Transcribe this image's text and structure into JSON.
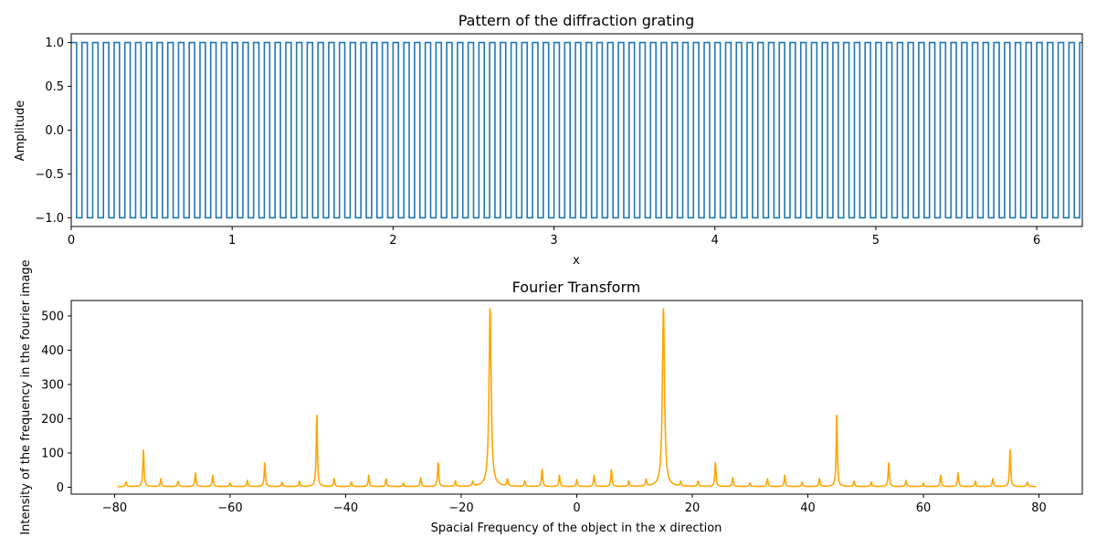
{
  "chart_data": [
    {
      "type": "line",
      "title": "Pattern of the diffraction grating",
      "xlabel": "x",
      "ylabel": "Amplitude",
      "xlim": [
        0,
        6.283
      ],
      "ylim": [
        -1.1,
        1.1
      ],
      "x_ticks": [
        "0",
        "1",
        "2",
        "3",
        "4",
        "5",
        "6"
      ],
      "y_ticks": [
        "1.0",
        "0.5",
        "0.0",
        "−0.5",
        "−1.0"
      ],
      "series": [
        {
          "description": "square wave between -1 and 1",
          "color": "#1f77b4",
          "frequency_cycles_per_unit": 15,
          "amplitude": 1.0,
          "x_range": [
            0,
            6.283
          ]
        }
      ],
      "grid": false
    },
    {
      "type": "line",
      "title": "Fourier Transform",
      "xlabel": "Spacial Frequency of the object in the x direction",
      "ylabel": "Intensity of the frequency in the fourier image",
      "xlim": [
        -87.5,
        87.5
      ],
      "ylim": [
        -20,
        545
      ],
      "x_ticks": [
        "−80",
        "−60",
        "−40",
        "−20",
        "0",
        "20",
        "40",
        "60",
        "80"
      ],
      "y_ticks": [
        "0",
        "100",
        "200",
        "300",
        "400",
        "500"
      ],
      "series": [
        {
          "color": "#ffa500",
          "x_range": [
            -79.5,
            79.5
          ],
          "baseline": 2,
          "peaks": [
            {
              "x": -78,
              "y": 15
            },
            {
              "x": -75,
              "y": 110
            },
            {
              "x": -72,
              "y": 25
            },
            {
              "x": -69,
              "y": 18
            },
            {
              "x": -66,
              "y": 42
            },
            {
              "x": -63,
              "y": 35
            },
            {
              "x": -60,
              "y": 12
            },
            {
              "x": -57,
              "y": 20
            },
            {
              "x": -54,
              "y": 72
            },
            {
              "x": -51,
              "y": 15
            },
            {
              "x": -48,
              "y": 18
            },
            {
              "x": -45,
              "y": 212
            },
            {
              "x": -42,
              "y": 25
            },
            {
              "x": -39,
              "y": 15
            },
            {
              "x": -36,
              "y": 35
            },
            {
              "x": -33,
              "y": 25
            },
            {
              "x": -30,
              "y": 12
            },
            {
              "x": -27,
              "y": 28
            },
            {
              "x": -24,
              "y": 72
            },
            {
              "x": -21,
              "y": 18
            },
            {
              "x": -18,
              "y": 15
            },
            {
              "x": -15,
              "y": 522
            },
            {
              "x": -12,
              "y": 22
            },
            {
              "x": -9,
              "y": 18
            },
            {
              "x": -6,
              "y": 52
            },
            {
              "x": -3,
              "y": 35
            },
            {
              "x": 0,
              "y": 22
            },
            {
              "x": 3,
              "y": 35
            },
            {
              "x": 6,
              "y": 52
            },
            {
              "x": 9,
              "y": 18
            },
            {
              "x": 12,
              "y": 22
            },
            {
              "x": 15,
              "y": 522
            },
            {
              "x": 18,
              "y": 15
            },
            {
              "x": 21,
              "y": 18
            },
            {
              "x": 24,
              "y": 72
            },
            {
              "x": 27,
              "y": 28
            },
            {
              "x": 30,
              "y": 12
            },
            {
              "x": 33,
              "y": 25
            },
            {
              "x": 36,
              "y": 35
            },
            {
              "x": 39,
              "y": 15
            },
            {
              "x": 42,
              "y": 25
            },
            {
              "x": 45,
              "y": 212
            },
            {
              "x": 48,
              "y": 18
            },
            {
              "x": 51,
              "y": 15
            },
            {
              "x": 54,
              "y": 72
            },
            {
              "x": 57,
              "y": 20
            },
            {
              "x": 60,
              "y": 12
            },
            {
              "x": 63,
              "y": 35
            },
            {
              "x": 66,
              "y": 42
            },
            {
              "x": 69,
              "y": 18
            },
            {
              "x": 72,
              "y": 25
            },
            {
              "x": 75,
              "y": 110
            },
            {
              "x": 78,
              "y": 15
            }
          ]
        }
      ],
      "grid": false
    }
  ]
}
